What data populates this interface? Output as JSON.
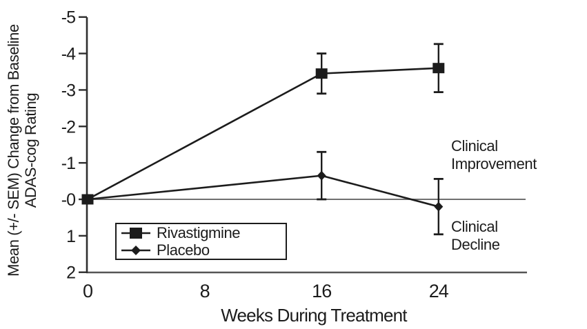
{
  "colors": {
    "ink": "#1c1c1c",
    "axis": "#2e2e2e",
    "bottom_axis": "#555555",
    "zero_line": "#6f6f6f",
    "background": "#ffffff"
  },
  "chart_data": {
    "type": "line",
    "title": "",
    "xlabel": "Weeks During Treatment",
    "ylabel": "Mean (+/- SEM) Change from Baseline ADAS-cog Rating",
    "ylabel_lines": [
      "Mean (+/- SEM) Change from Baseline",
      "ADAS-cog Rating"
    ],
    "x_tick_values": [
      0,
      8,
      16,
      24
    ],
    "x_tick_labels": [
      "0",
      "8",
      "16",
      "24"
    ],
    "y_tick_values": [
      -5,
      -4,
      -3,
      -2,
      -1,
      0,
      1,
      2
    ],
    "y_tick_labels": [
      "-5",
      "-4",
      "-3",
      "-2",
      "-1",
      "-0",
      "1",
      "2"
    ],
    "xlim": [
      0,
      30
    ],
    "ylim": [
      -5,
      2
    ],
    "y_axis_inverted": true,
    "grid": false,
    "zero_line": true,
    "legend_position": "inside-bottom-left",
    "series": [
      {
        "name": "Rivastigmine",
        "marker": "square",
        "x": [
          0,
          16,
          24
        ],
        "y": [
          0,
          -3.45,
          -3.6
        ],
        "sem": [
          0,
          0.55,
          0.66
        ]
      },
      {
        "name": "Placebo",
        "marker": "diamond",
        "x": [
          0,
          16,
          24
        ],
        "y": [
          0,
          -0.65,
          0.2
        ],
        "sem": [
          0,
          0.65,
          0.76
        ]
      }
    ],
    "annotations": [
      {
        "line1": "Clinical",
        "line2": "Improvement"
      },
      {
        "line1": "Clinical",
        "line2": "Decline"
      }
    ]
  }
}
